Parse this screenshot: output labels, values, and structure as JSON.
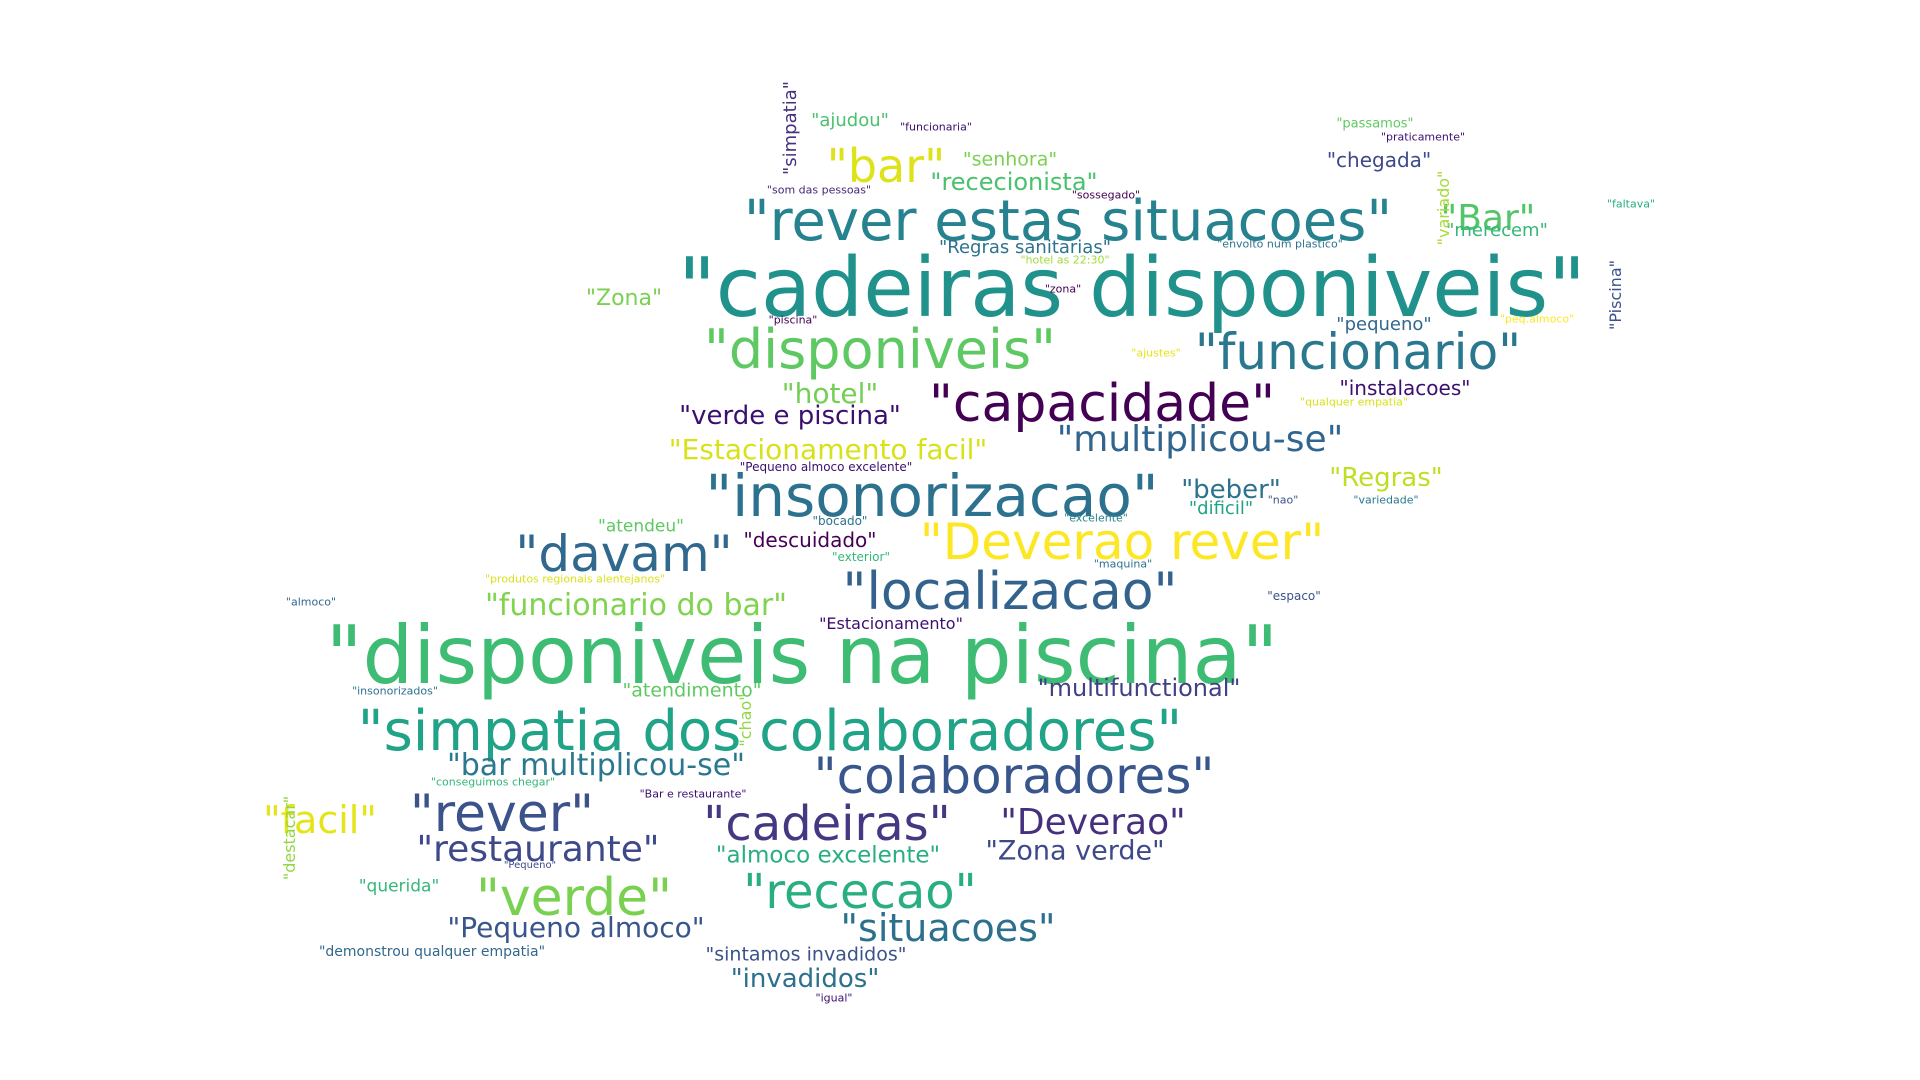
{
  "words": [
    {
      "text": "\"cadeiras disponiveis\"",
      "color": "#21918c"
    },
    {
      "text": "\"disponiveis na piscina\"",
      "color": "#3fbc73"
    },
    {
      "text": "\"rever estas situacoes\"",
      "color": "#26828e"
    },
    {
      "text": "\"simpatia dos colaboradores\"",
      "color": "#20a386"
    },
    {
      "text": "\"insonorizacao\"",
      "color": "#2c728e"
    },
    {
      "text": "\"disponiveis\"",
      "color": "#5ec962"
    },
    {
      "text": "\"funcionario\"",
      "color": "#2a788e"
    },
    {
      "text": "\"capacidade\"",
      "color": "#440154"
    },
    {
      "text": "\"Deverao rever\"",
      "color": "#fde725"
    },
    {
      "text": "\"localizacao\"",
      "color": "#33638d"
    },
    {
      "text": "\"davam\"",
      "color": "#31688e"
    },
    {
      "text": "\"colaboradores\"",
      "color": "#39568c"
    },
    {
      "text": "\"cadeiras\"",
      "color": "#453781"
    },
    {
      "text": "\"rever\"",
      "color": "#3b528b"
    },
    {
      "text": "\"verde\"",
      "color": "#7ad151"
    },
    {
      "text": "\"rececao\"",
      "color": "#29af7f"
    },
    {
      "text": "\"bar\"",
      "color": "#dde318"
    },
    {
      "text": "\"situacoes\"",
      "color": "#2d708e"
    },
    {
      "text": "\"multiplicou-se\"",
      "color": "#32658e"
    },
    {
      "text": "\"Deverao\"",
      "color": "#46307e"
    },
    {
      "text": "\"restaurante\"",
      "color": "#3e4989"
    },
    {
      "text": "\"Bar\"",
      "color": "#52c569"
    },
    {
      "text": "\"facil\"",
      "color": "#e5e419"
    },
    {
      "text": "\"bar multiplicou-se\"",
      "color": "#2a788e"
    },
    {
      "text": "\"funcionario do bar\"",
      "color": "#7fd34e"
    },
    {
      "text": "\"Estacionamento facil\"",
      "color": "#d8e219"
    },
    {
      "text": "\"verde e piscina\"",
      "color": "#3b0f70"
    },
    {
      "text": "\"Zona verde\"",
      "color": "#3e4989"
    },
    {
      "text": "\"Pequeno almoco\"",
      "color": "#39568c"
    },
    {
      "text": "\"hotel\"",
      "color": "#74d055"
    },
    {
      "text": "\"multifunctional\"",
      "color": "#423f85"
    },
    {
      "text": "\"rececionista\"",
      "color": "#4ac16d"
    },
    {
      "text": "\"Regras\"",
      "color": "#bddf26"
    },
    {
      "text": "\"beber\"",
      "color": "#2c728e"
    },
    {
      "text": "\"almoco excelente\"",
      "color": "#29af7f"
    },
    {
      "text": "\"invadidos\"",
      "color": "#2d708e"
    },
    {
      "text": "\"instalacoes\"",
      "color": "#3b0f70"
    },
    {
      "text": "\"descuidado\"",
      "color": "#440154"
    },
    {
      "text": "\"Regras sanitarias\"",
      "color": "#2c728e"
    },
    {
      "text": "\"Zona\"",
      "color": "#7ad151"
    },
    {
      "text": "\"chegada\"",
      "color": "#3e4989"
    },
    {
      "text": "\"senhora\"",
      "color": "#7ad151"
    },
    {
      "text": "\"ajudou\"",
      "color": "#4ac16d"
    },
    {
      "text": "\"simpatia\"",
      "color": "#46307e",
      "vertical": true
    },
    {
      "text": "\"atendimento\"",
      "color": "#5ec962"
    },
    {
      "text": "\"sintamos invadidos\"",
      "color": "#3b528b"
    },
    {
      "text": "\"merecem\"",
      "color": "#35b779"
    },
    {
      "text": "\"Piscina\"",
      "color": "#3b528b",
      "vertical": true
    },
    {
      "text": "\"dificil\"",
      "color": "#20a386"
    },
    {
      "text": "\"atendeu\"",
      "color": "#5ec962"
    },
    {
      "text": "\"pequeno\"",
      "color": "#31688e"
    },
    {
      "text": "\"Estacionamento\"",
      "color": "#3b0f70"
    },
    {
      "text": "\"querida\"",
      "color": "#35b779"
    },
    {
      "text": "\"demonstrou qualquer empatia\"",
      "color": "#31688e"
    },
    {
      "text": "\"chao\"",
      "color": "#90d743",
      "vertical": true
    },
    {
      "text": "\"destacar\"",
      "color": "#90d743",
      "vertical": true
    },
    {
      "text": "\"variado\"",
      "color": "#a5db36",
      "vertical": true
    },
    {
      "text": "\"passamos\"",
      "color": "#5ec962"
    },
    {
      "text": "\"praticamente\"",
      "color": "#3b0f70"
    },
    {
      "text": "\"funcionaria\"",
      "color": "#3b0f70"
    },
    {
      "text": "\"som das pessoas\"",
      "color": "#482677"
    },
    {
      "text": "\"sossegado\"",
      "color": "#440154"
    },
    {
      "text": "\"faltava\"",
      "color": "#29af7f"
    },
    {
      "text": "\"envolto num plastico\"",
      "color": "#2c728e"
    },
    {
      "text": "\"hotel as 22:30\"",
      "color": "#a0da39"
    },
    {
      "text": "\"zona\"",
      "color": "#440154"
    },
    {
      "text": "\"piscina\"",
      "color": "#440154"
    },
    {
      "text": "\"peq.almoco\"",
      "color": "#fde725"
    },
    {
      "text": "\"ajustes\"",
      "color": "#e5e419"
    },
    {
      "text": "\"qualquer empatia\"",
      "color": "#d8e219"
    },
    {
      "text": "\"Pequeno almoco excelente\"",
      "color": "#3b0f70"
    },
    {
      "text": "\"nao\"",
      "color": "#3b528b"
    },
    {
      "text": "\"variedade\"",
      "color": "#2a788e"
    },
    {
      "text": "\"bocado\"",
      "color": "#2c728e"
    },
    {
      "text": "\"excelente\"",
      "color": "#26828e"
    },
    {
      "text": "\"exterior\"",
      "color": "#35b779"
    },
    {
      "text": "\"maquina\"",
      "color": "#2c728e"
    },
    {
      "text": "\"produtos regionais alentejanos\"",
      "color": "#d8e219"
    },
    {
      "text": "\"almoco\"",
      "color": "#31688e"
    },
    {
      "text": "\"espaco\"",
      "color": "#3b528b"
    },
    {
      "text": "\"insonorizados\"",
      "color": "#2c728e"
    },
    {
      "text": "\"conseguimos chegar\"",
      "color": "#35b779"
    },
    {
      "text": "\"Bar e restaurante\"",
      "color": "#3b0f70"
    },
    {
      "text": "\"Pequeno\"",
      "color": "#3e4989"
    },
    {
      "text": "\"igual\"",
      "color": "#3b0f70"
    }
  ]
}
